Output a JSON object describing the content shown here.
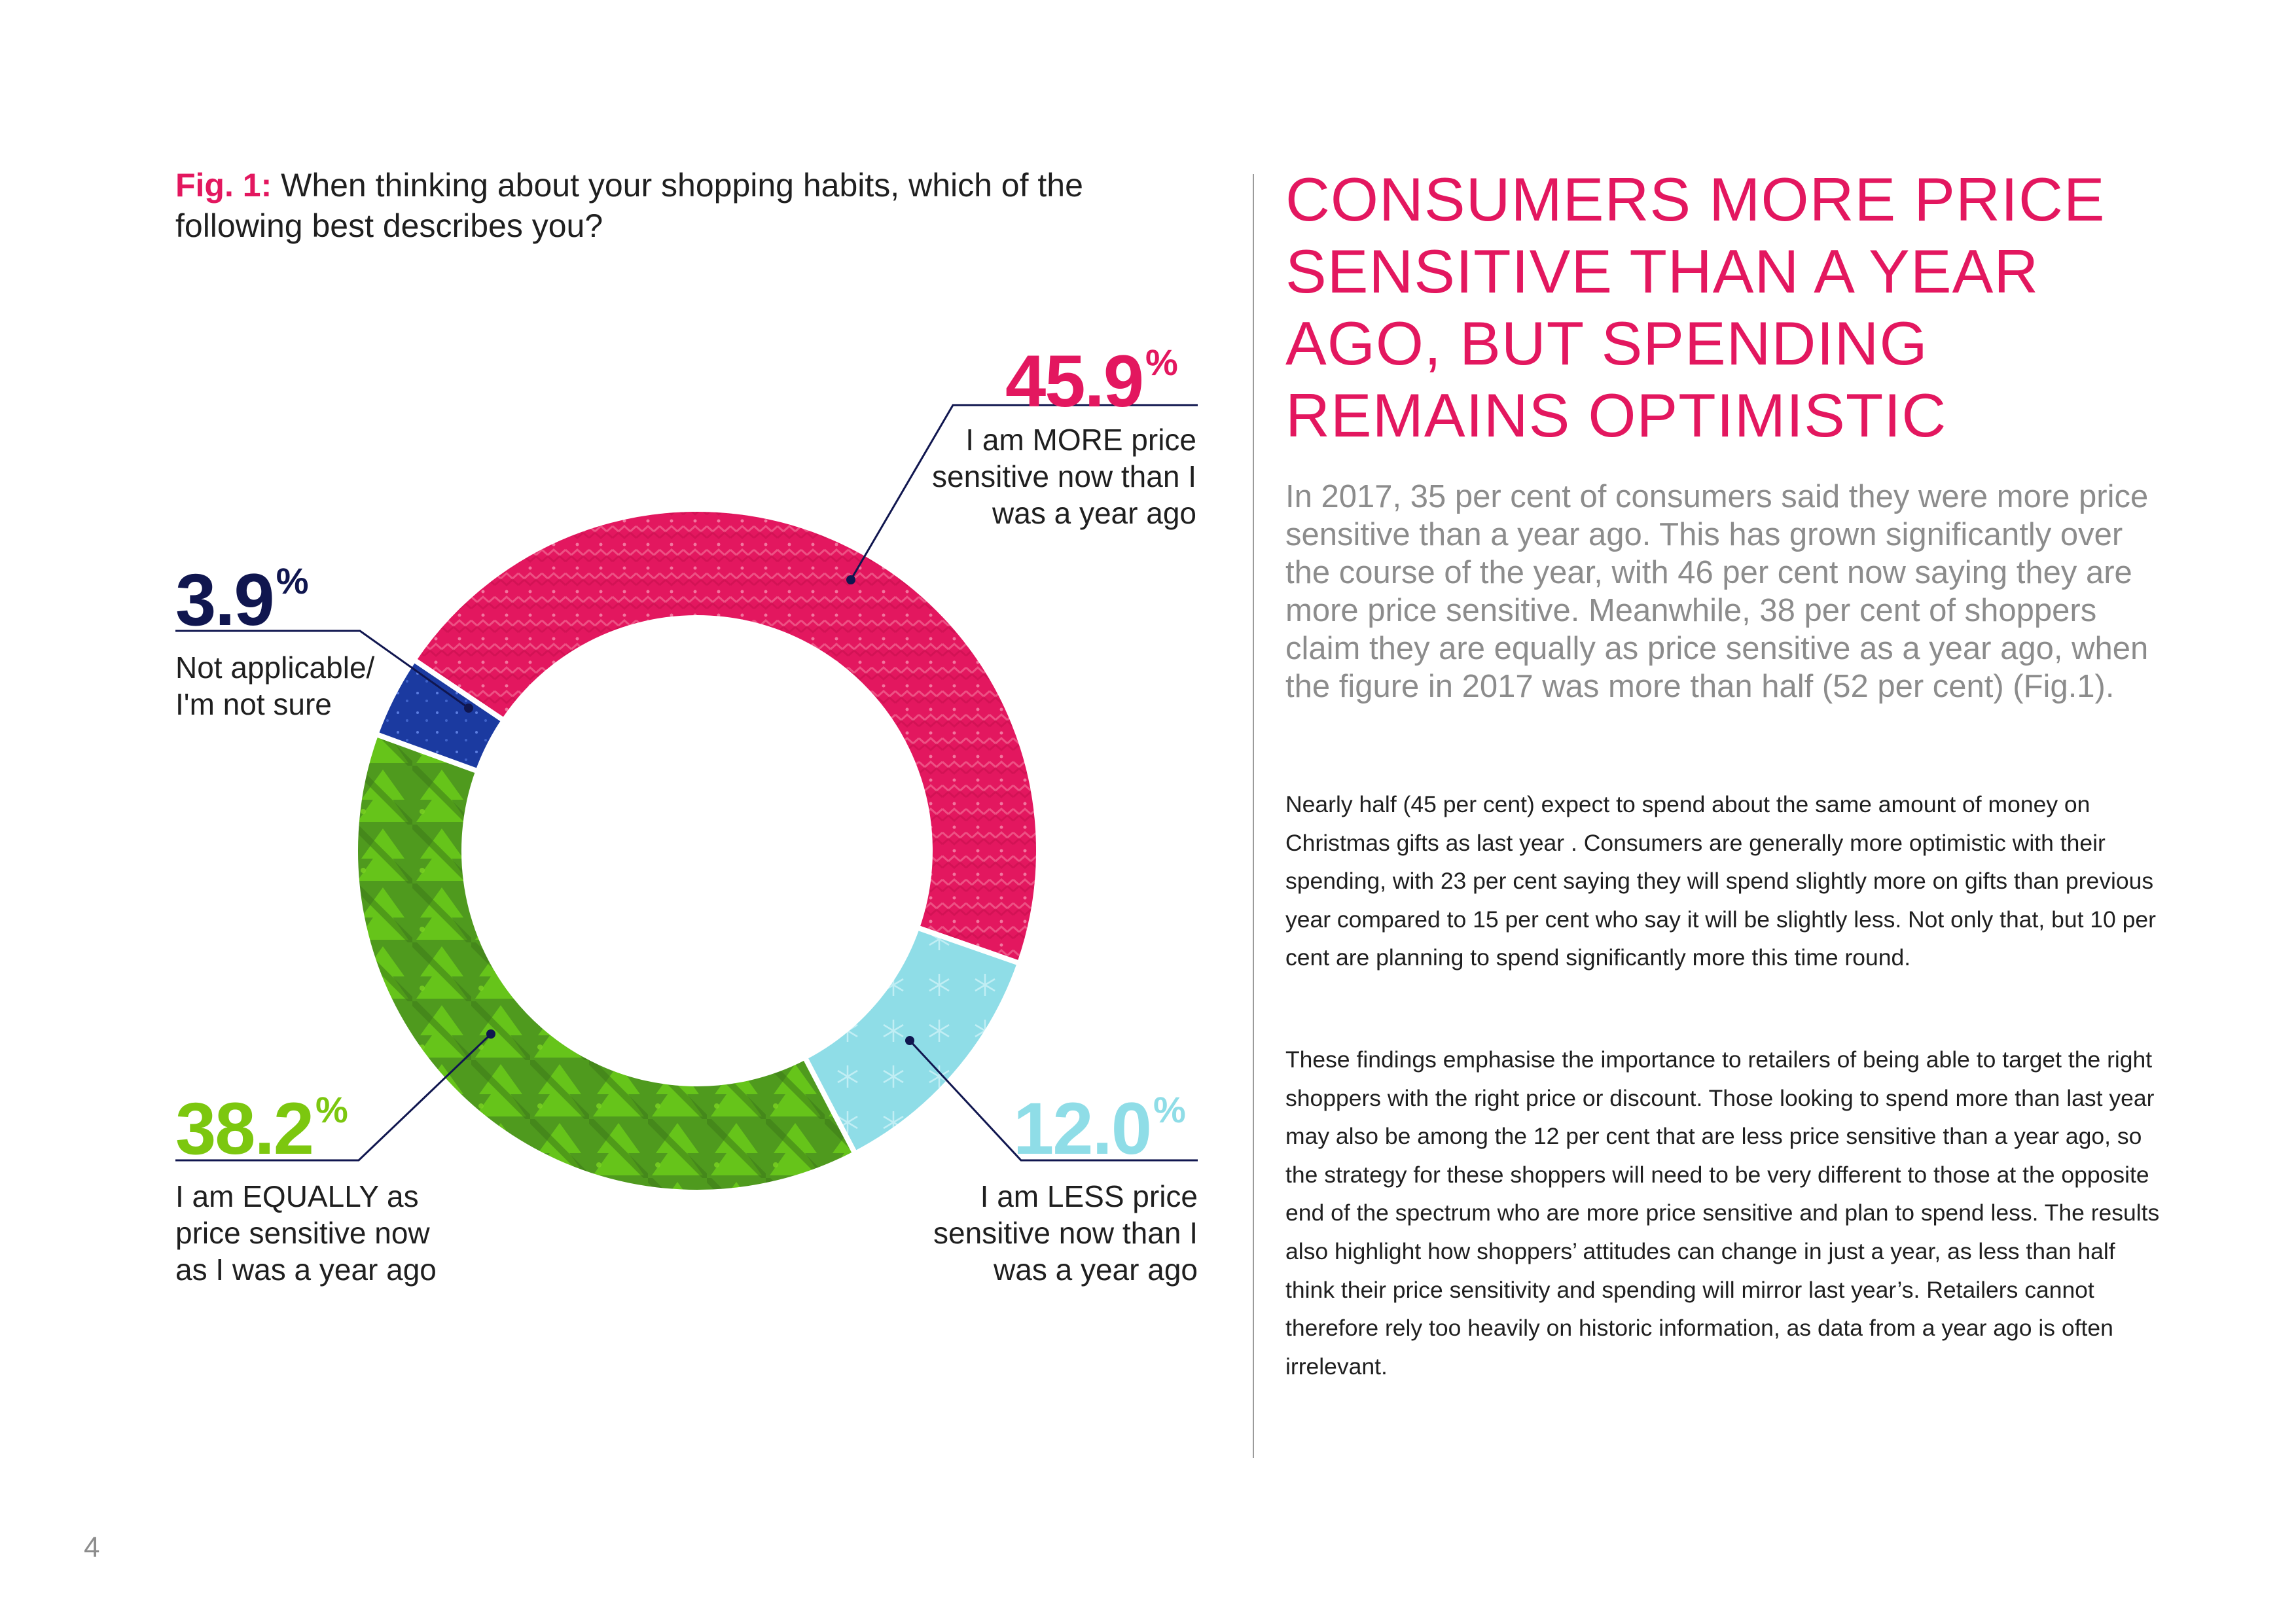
{
  "figure": {
    "label": "Fig. 1:",
    "question": "When thinking about your shopping habits, which of the following best describes you?"
  },
  "chart_data": {
    "type": "pie",
    "variant": "donut",
    "title": "When thinking about your shopping habits, which of the following best describes you?",
    "series": [
      {
        "name": "I am MORE price sensitive now than I was a year ago",
        "value": 45.9,
        "value_label": "45.9",
        "percent_symbol": "%",
        "color": "#e3175f"
      },
      {
        "name": "I am LESS price sensitive now than I was a year ago",
        "value": 12.0,
        "value_label": "12.0",
        "percent_symbol": "%",
        "color": "#8fdde7"
      },
      {
        "name": "I am EQUALLY as price sensitive now as I was a year ago",
        "value": 38.2,
        "value_label": "38.2",
        "percent_symbol": "%",
        "color": "#5cbd12"
      },
      {
        "name": "Not applicable/ I'm not sure",
        "value": 3.9,
        "value_label": "3.9",
        "percent_symbol": "%",
        "color": "#1b3aa0"
      }
    ],
    "start": "12 o'clock, clockwise, starting at the Not applicable/MORE boundary slightly left of top",
    "legend": "none (callout labels)"
  },
  "headline": "CONSUMERS MORE PRICE SENSITIVE THAN A YEAR AGO, BUT SPENDING REMAINS OPTIMISTIC",
  "intro": "In 2017, 35 per cent of consumers said they were more price sensitive than a year ago. This has grown significantly over the course of the year, with 46 per cent now saying they are more price sensitive. Meanwhile, 38 per cent of shoppers claim they are equally as price sensitive as a year ago, when the figure in 2017 was more than half (52 per cent) (Fig.1).",
  "body": [
    "Nearly half (45 per cent) expect to spend about the same amount of money on Christmas gifts as last year . Consumers are generally more optimistic with their spending, with 23 per cent saying they will spend slightly more on gifts than previous year compared to 15 per cent who say it will be slightly less. Not only that, but 10 per cent are planning to spend significantly more this time round.",
    "These findings emphasise the importance to retailers of being able to target the right shoppers with the right price or discount. Those looking to spend more than last year may also be among the 12 per cent that are less price sensitive than a year ago, so the strategy for these shoppers will need to be very different to those at the opposite end of the spectrum who are more price sensitive and plan to spend less. The results also highlight how shoppers’ attitudes can change in just a year, as less than half think their price sensitivity and spending will mirror last year’s. Retailers cannot therefore rely too heavily on historic information, as data from a year ago is often irrelevant."
  ],
  "page_number": "4",
  "colors": {
    "accent_pink": "#e3175f",
    "navy": "#10164f",
    "green": "#7cc70f",
    "light_blue": "#8fdde7",
    "grey_text": "#8c8c8c"
  }
}
